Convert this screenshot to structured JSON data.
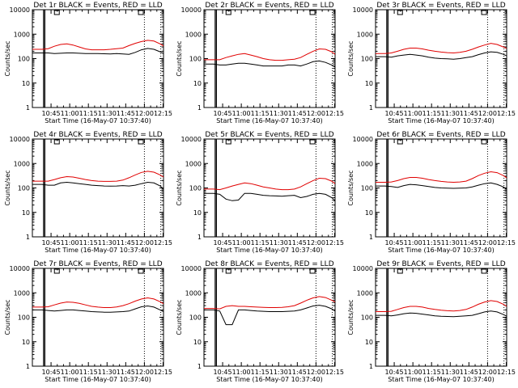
{
  "figure": {
    "time_labels": [
      "10:45",
      "11:00",
      "11:15",
      "11:30",
      "11:45",
      "12:00",
      "12:15"
    ],
    "ytick_labels": [
      "1",
      "10",
      "100",
      "1000",
      "10000"
    ],
    "colors": {
      "events": "#000000",
      "lld": "#e00000"
    }
  },
  "chart_data": [
    {
      "type": "line",
      "title": "Det 1r BLACK = Events, RED = LLD",
      "xlabel": "Start Time (16-May-07 10:37:40)",
      "ylabel": "Counts/sec",
      "xlim_min": [
        -7.67,
        97.67
      ],
      "ylim": [
        1,
        10000
      ],
      "yscale": "log",
      "x": [
        -7.67,
        0,
        5,
        10,
        15,
        20,
        25,
        30,
        35,
        40,
        45,
        50,
        55,
        60,
        65,
        70,
        75,
        80,
        85,
        90,
        95,
        97.67
      ],
      "series": [
        {
          "name": "Events",
          "values": [
            170,
            170,
            170,
            160,
            165,
            170,
            170,
            165,
            160,
            160,
            160,
            158,
            155,
            160,
            155,
            150,
            180,
            230,
            260,
            240,
            190,
            160
          ]
        },
        {
          "name": "LLD",
          "values": [
            240,
            240,
            255,
            320,
            380,
            400,
            360,
            300,
            250,
            230,
            230,
            230,
            240,
            255,
            270,
            340,
            420,
            500,
            560,
            520,
            400,
            330
          ]
        }
      ]
    },
    {
      "type": "line",
      "title": "Det 2r BLACK = Events, RED = LLD",
      "xlabel": "Start Time (16-May-07 10:37:40)",
      "ylabel": "Counts/sec",
      "xlim_min": [
        -7.67,
        97.67
      ],
      "ylim": [
        1,
        10000
      ],
      "yscale": "log",
      "x": [
        -7.67,
        0,
        5,
        10,
        15,
        20,
        25,
        30,
        35,
        40,
        45,
        50,
        55,
        60,
        65,
        70,
        75,
        80,
        85,
        90,
        95,
        97.67
      ],
      "series": [
        {
          "name": "Events",
          "values": [
            60,
            60,
            55,
            55,
            60,
            65,
            65,
            60,
            55,
            50,
            50,
            50,
            50,
            55,
            55,
            50,
            60,
            75,
            80,
            70,
            55,
            45
          ]
        },
        {
          "name": "LLD",
          "values": [
            90,
            90,
            90,
            110,
            130,
            150,
            160,
            140,
            120,
            100,
            90,
            85,
            85,
            90,
            95,
            110,
            150,
            200,
            250,
            240,
            190,
            150
          ]
        }
      ]
    },
    {
      "type": "line",
      "title": "Det 3r BLACK = Events, RED = LLD",
      "xlabel": "Start Time (16-May-07 10:37:40)",
      "ylabel": "Counts/sec",
      "xlim_min": [
        -7.67,
        97.67
      ],
      "ylim": [
        1,
        10000
      ],
      "yscale": "log",
      "x": [
        -7.67,
        0,
        5,
        10,
        15,
        20,
        25,
        30,
        35,
        40,
        45,
        50,
        55,
        60,
        65,
        70,
        75,
        80,
        85,
        90,
        95,
        97.67
      ],
      "series": [
        {
          "name": "Events",
          "values": [
            120,
            120,
            115,
            130,
            140,
            150,
            140,
            130,
            115,
            105,
            100,
            98,
            95,
            100,
            110,
            120,
            145,
            170,
            190,
            180,
            150,
            130
          ]
        },
        {
          "name": "LLD",
          "values": [
            160,
            160,
            170,
            200,
            240,
            270,
            270,
            250,
            220,
            200,
            185,
            175,
            170,
            180,
            200,
            240,
            300,
            360,
            420,
            380,
            300,
            260
          ]
        }
      ]
    },
    {
      "type": "line",
      "title": "Det 4r BLACK = Events, RED = LLD",
      "xlabel": "Start Time (16-May-07 10:37:40)",
      "ylabel": "Counts/sec",
      "xlim_min": [
        -7.67,
        97.67
      ],
      "ylim": [
        1,
        10000
      ],
      "yscale": "log",
      "x": [
        -7.67,
        0,
        5,
        10,
        15,
        20,
        25,
        30,
        35,
        40,
        45,
        50,
        55,
        60,
        65,
        70,
        75,
        80,
        85,
        90,
        95,
        97.67
      ],
      "series": [
        {
          "name": "Events",
          "values": [
            140,
            140,
            130,
            130,
            160,
            170,
            160,
            150,
            140,
            130,
            125,
            120,
            118,
            120,
            125,
            120,
            130,
            150,
            170,
            160,
            120,
            90
          ]
        },
        {
          "name": "LLD",
          "values": [
            190,
            190,
            190,
            220,
            260,
            290,
            280,
            250,
            220,
            200,
            190,
            185,
            185,
            190,
            210,
            260,
            340,
            430,
            480,
            440,
            340,
            280
          ]
        }
      ]
    },
    {
      "type": "line",
      "title": "Det 5r BLACK = Events, RED = LLD",
      "xlabel": "Start Time (16-May-07 10:37:40)",
      "ylabel": "Counts/sec",
      "xlim_min": [
        -7.67,
        97.67
      ],
      "ylim": [
        1,
        10000
      ],
      "yscale": "log",
      "x": [
        -7.67,
        0,
        5,
        10,
        15,
        20,
        25,
        30,
        35,
        40,
        45,
        50,
        55,
        60,
        65,
        70,
        75,
        80,
        85,
        90,
        95,
        97.67
      ],
      "series": [
        {
          "name": "Events",
          "values": [
            60,
            60,
            55,
            35,
            30,
            32,
            60,
            60,
            55,
            50,
            48,
            47,
            46,
            48,
            50,
            40,
            45,
            55,
            60,
            55,
            40,
            30
          ]
        },
        {
          "name": "LLD",
          "values": [
            90,
            90,
            85,
            100,
            120,
            140,
            160,
            150,
            130,
            110,
            100,
            90,
            85,
            85,
            90,
            110,
            150,
            200,
            250,
            240,
            190,
            150
          ]
        }
      ]
    },
    {
      "type": "line",
      "title": "Det 6r BLACK = Events, RED = LLD",
      "xlabel": "Start Time (16-May-07 10:37:40)",
      "ylabel": "Counts/sec",
      "xlim_min": [
        -7.67,
        97.67
      ],
      "ylim": [
        1,
        10000
      ],
      "yscale": "log",
      "x": [
        -7.67,
        0,
        5,
        10,
        15,
        20,
        25,
        30,
        35,
        40,
        45,
        50,
        55,
        60,
        65,
        70,
        75,
        80,
        85,
        90,
        95,
        97.67
      ],
      "series": [
        {
          "name": "Events",
          "values": [
            120,
            120,
            115,
            105,
            125,
            140,
            135,
            125,
            115,
            105,
            100,
            98,
            96,
            98,
            100,
            110,
            130,
            150,
            160,
            140,
            110,
            90
          ]
        },
        {
          "name": "LLD",
          "values": [
            170,
            170,
            175,
            200,
            240,
            270,
            270,
            250,
            220,
            200,
            185,
            175,
            170,
            175,
            190,
            240,
            320,
            400,
            460,
            420,
            320,
            260
          ]
        }
      ]
    },
    {
      "type": "line",
      "title": "Det 7r BLACK = Events, RED = LLD",
      "xlabel": "Start Time (16-May-07 10:37:40)",
      "ylabel": "Counts/sec",
      "xlim_min": [
        -7.67,
        97.67
      ],
      "ylim": [
        1,
        10000
      ],
      "yscale": "log",
      "x": [
        -7.67,
        0,
        5,
        10,
        15,
        20,
        25,
        30,
        35,
        40,
        45,
        50,
        55,
        60,
        65,
        70,
        75,
        80,
        85,
        90,
        95,
        97.67
      ],
      "series": [
        {
          "name": "Events",
          "values": [
            200,
            200,
            190,
            180,
            190,
            200,
            200,
            190,
            180,
            170,
            165,
            162,
            160,
            165,
            170,
            180,
            220,
            270,
            290,
            260,
            200,
            170
          ]
        },
        {
          "name": "LLD",
          "values": [
            260,
            260,
            270,
            320,
            380,
            420,
            410,
            370,
            320,
            280,
            260,
            250,
            250,
            265,
            300,
            360,
            460,
            560,
            620,
            560,
            430,
            360
          ]
        }
      ]
    },
    {
      "type": "line",
      "title": "Det 8r BLACK = Events, RED = LLD",
      "xlabel": "Start Time (16-May-07 10:37:40)",
      "ylabel": "Counts/sec",
      "xlim_min": [
        -7.67,
        97.67
      ],
      "ylim": [
        1,
        10000
      ],
      "yscale": "log",
      "x": [
        -7.67,
        0,
        5,
        10,
        15,
        20,
        25,
        30,
        35,
        40,
        45,
        50,
        55,
        60,
        65,
        70,
        75,
        80,
        85,
        90,
        95,
        97.67
      ],
      "series": [
        {
          "name": "Events",
          "values": [
            200,
            200,
            180,
            50,
            50,
            200,
            200,
            190,
            180,
            175,
            170,
            170,
            170,
            175,
            180,
            200,
            240,
            290,
            310,
            280,
            220,
            180
          ]
        },
        {
          "name": "LLD",
          "values": [
            230,
            230,
            220,
            280,
            300,
            280,
            280,
            270,
            260,
            255,
            250,
            250,
            255,
            270,
            300,
            380,
            500,
            620,
            700,
            640,
            500,
            420
          ]
        }
      ]
    },
    {
      "type": "line",
      "title": "Det 9r BLACK = Events, RED = LLD",
      "xlabel": "Start Time (16-May-07 10:37:40)",
      "ylabel": "Counts/sec",
      "xlim_min": [
        -7.67,
        97.67
      ],
      "ylim": [
        1,
        10000
      ],
      "yscale": "log",
      "x": [
        -7.67,
        0,
        5,
        10,
        15,
        20,
        25,
        30,
        35,
        40,
        45,
        50,
        55,
        60,
        65,
        70,
        75,
        80,
        85,
        90,
        95,
        97.67
      ],
      "series": [
        {
          "name": "Events",
          "values": [
            120,
            120,
            115,
            125,
            140,
            150,
            145,
            135,
            125,
            115,
            110,
            108,
            106,
            110,
            115,
            120,
            140,
            165,
            180,
            165,
            130,
            110
          ]
        },
        {
          "name": "LLD",
          "values": [
            170,
            170,
            175,
            210,
            250,
            280,
            280,
            260,
            230,
            210,
            195,
            185,
            180,
            190,
            210,
            260,
            340,
            420,
            480,
            440,
            340,
            280
          ]
        }
      ]
    }
  ]
}
